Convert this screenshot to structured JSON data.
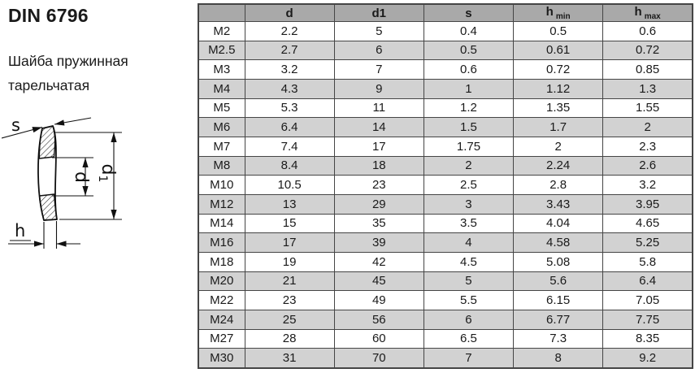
{
  "page": {
    "title": "DIN 6796",
    "subtitle": "Шайба пружинная тарельчатая"
  },
  "diagram": {
    "name": "conical-spring-washer-cross-section",
    "labels": {
      "s": "s",
      "d": "d",
      "d1": "d",
      "d1_sub": "1",
      "h": "h"
    }
  },
  "table": {
    "columns": [
      {
        "label": ""
      },
      {
        "label": "d"
      },
      {
        "label": "d1"
      },
      {
        "label": "s"
      },
      {
        "label": "h",
        "sub": "min"
      },
      {
        "label": "h",
        "sub": "max"
      }
    ],
    "rows": [
      {
        "size": "M2",
        "values": [
          "2.2",
          "5",
          "0.4",
          "0.5",
          "0.6"
        ]
      },
      {
        "size": "M2.5",
        "values": [
          "2.7",
          "6",
          "0.5",
          "0.61",
          "0.72"
        ]
      },
      {
        "size": "M3",
        "values": [
          "3.2",
          "7",
          "0.6",
          "0.72",
          "0.85"
        ]
      },
      {
        "size": "M4",
        "values": [
          "4.3",
          "9",
          "1",
          "1.12",
          "1.3"
        ]
      },
      {
        "size": "M5",
        "values": [
          "5.3",
          "11",
          "1.2",
          "1.35",
          "1.55"
        ]
      },
      {
        "size": "M6",
        "values": [
          "6.4",
          "14",
          "1.5",
          "1.7",
          "2"
        ]
      },
      {
        "size": "M7",
        "values": [
          "7.4",
          "17",
          "1.75",
          "2",
          "2.3"
        ]
      },
      {
        "size": "M8",
        "values": [
          "8.4",
          "18",
          "2",
          "2.24",
          "2.6"
        ]
      },
      {
        "size": "M10",
        "values": [
          "10.5",
          "23",
          "2.5",
          "2.8",
          "3.2"
        ]
      },
      {
        "size": "M12",
        "values": [
          "13",
          "29",
          "3",
          "3.43",
          "3.95"
        ]
      },
      {
        "size": "M14",
        "values": [
          "15",
          "35",
          "3.5",
          "4.04",
          "4.65"
        ]
      },
      {
        "size": "M16",
        "values": [
          "17",
          "39",
          "4",
          "4.58",
          "5.25"
        ]
      },
      {
        "size": "M18",
        "values": [
          "19",
          "42",
          "4.5",
          "5.08",
          "5.8"
        ]
      },
      {
        "size": "M20",
        "values": [
          "21",
          "45",
          "5",
          "5.6",
          "6.4"
        ]
      },
      {
        "size": "M22",
        "values": [
          "23",
          "49",
          "5.5",
          "6.15",
          "7.05"
        ]
      },
      {
        "size": "M24",
        "values": [
          "25",
          "56",
          "6",
          "6.77",
          "7.75"
        ]
      },
      {
        "size": "M27",
        "values": [
          "28",
          "60",
          "6.5",
          "7.3",
          "8.35"
        ]
      },
      {
        "size": "M30",
        "values": [
          "31",
          "70",
          "7",
          "8",
          "9.2"
        ]
      }
    ]
  },
  "colors": {
    "header_bg": "#a9a9a9",
    "row_alt_bg": "#d2d2d2",
    "row_bg": "#ffffff",
    "border": "#454545",
    "text": "#1a1a1a"
  }
}
